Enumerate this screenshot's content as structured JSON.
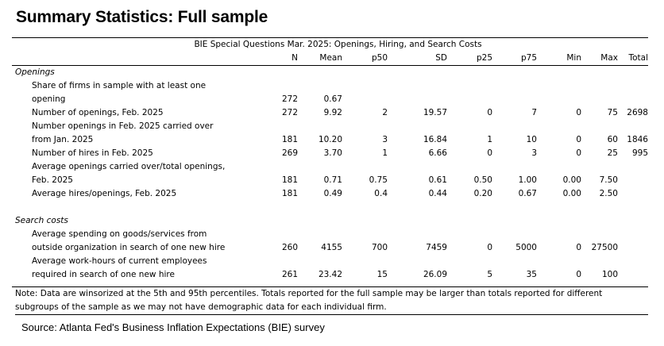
{
  "title": "Summary Statistics: Full sample",
  "caption": "BIE Special Questions Mar. 2025: Openings, Hiring, and Search Costs",
  "columns": [
    "N",
    "Mean",
    "p50",
    "SD",
    "p25",
    "p75",
    "Min",
    "Max",
    "Total"
  ],
  "sections": [
    {
      "name": "Openings",
      "rows": [
        {
          "label1": "Share of firms in sample with at least one",
          "label2": "opening",
          "values": [
            "272",
            "0.67",
            "",
            "",
            "",
            "",
            "",
            "",
            ""
          ]
        },
        {
          "label1": "Number of openings, Feb. 2025",
          "values": [
            "272",
            "9.92",
            "2",
            "19.57",
            "0",
            "7",
            "0",
            "75",
            "2698"
          ]
        },
        {
          "label1": "Number openings in Feb. 2025 carried over",
          "label2": "from Jan. 2025",
          "values": [
            "181",
            "10.20",
            "3",
            "16.84",
            "1",
            "10",
            "0",
            "60",
            "1846"
          ]
        },
        {
          "label1": "Number of hires in Feb. 2025",
          "values": [
            "269",
            "3.70",
            "1",
            "6.66",
            "0",
            "3",
            "0",
            "25",
            "995"
          ]
        },
        {
          "label1": "Average openings carried over/total openings,",
          "label2": "Feb. 2025",
          "values": [
            "181",
            "0.71",
            "0.75",
            "0.61",
            "0.50",
            "1.00",
            "0.00",
            "7.50",
            ""
          ]
        },
        {
          "label1": "Average hires/openings, Feb. 2025",
          "values": [
            "181",
            "0.49",
            "0.4",
            "0.44",
            "0.20",
            "0.67",
            "0.00",
            "2.50",
            ""
          ]
        }
      ]
    },
    {
      "name": "Search costs",
      "rows": [
        {
          "label1": "Average spending on goods/services from",
          "label2": "outside organization in search of one new hire",
          "values": [
            "260",
            "4155",
            "700",
            "7459",
            "0",
            "5000",
            "0",
            "27500",
            ""
          ]
        },
        {
          "label1": "Average work-hours of current employees",
          "label2": "required in search of one new hire",
          "values": [
            "261",
            "23.42",
            "15",
            "26.09",
            "5",
            "35",
            "0",
            "100",
            ""
          ]
        }
      ]
    }
  ],
  "note_lines": [
    "Note: Data are winsorized at the 5th and 95th percentiles. Totals reported for the full sample may be larger than totals reported for different",
    "subgroups of the sample as we may not have demographic data for each individual firm."
  ],
  "source": "Source: Atlanta Fed's Business Inflation Expectations (BIE) survey"
}
